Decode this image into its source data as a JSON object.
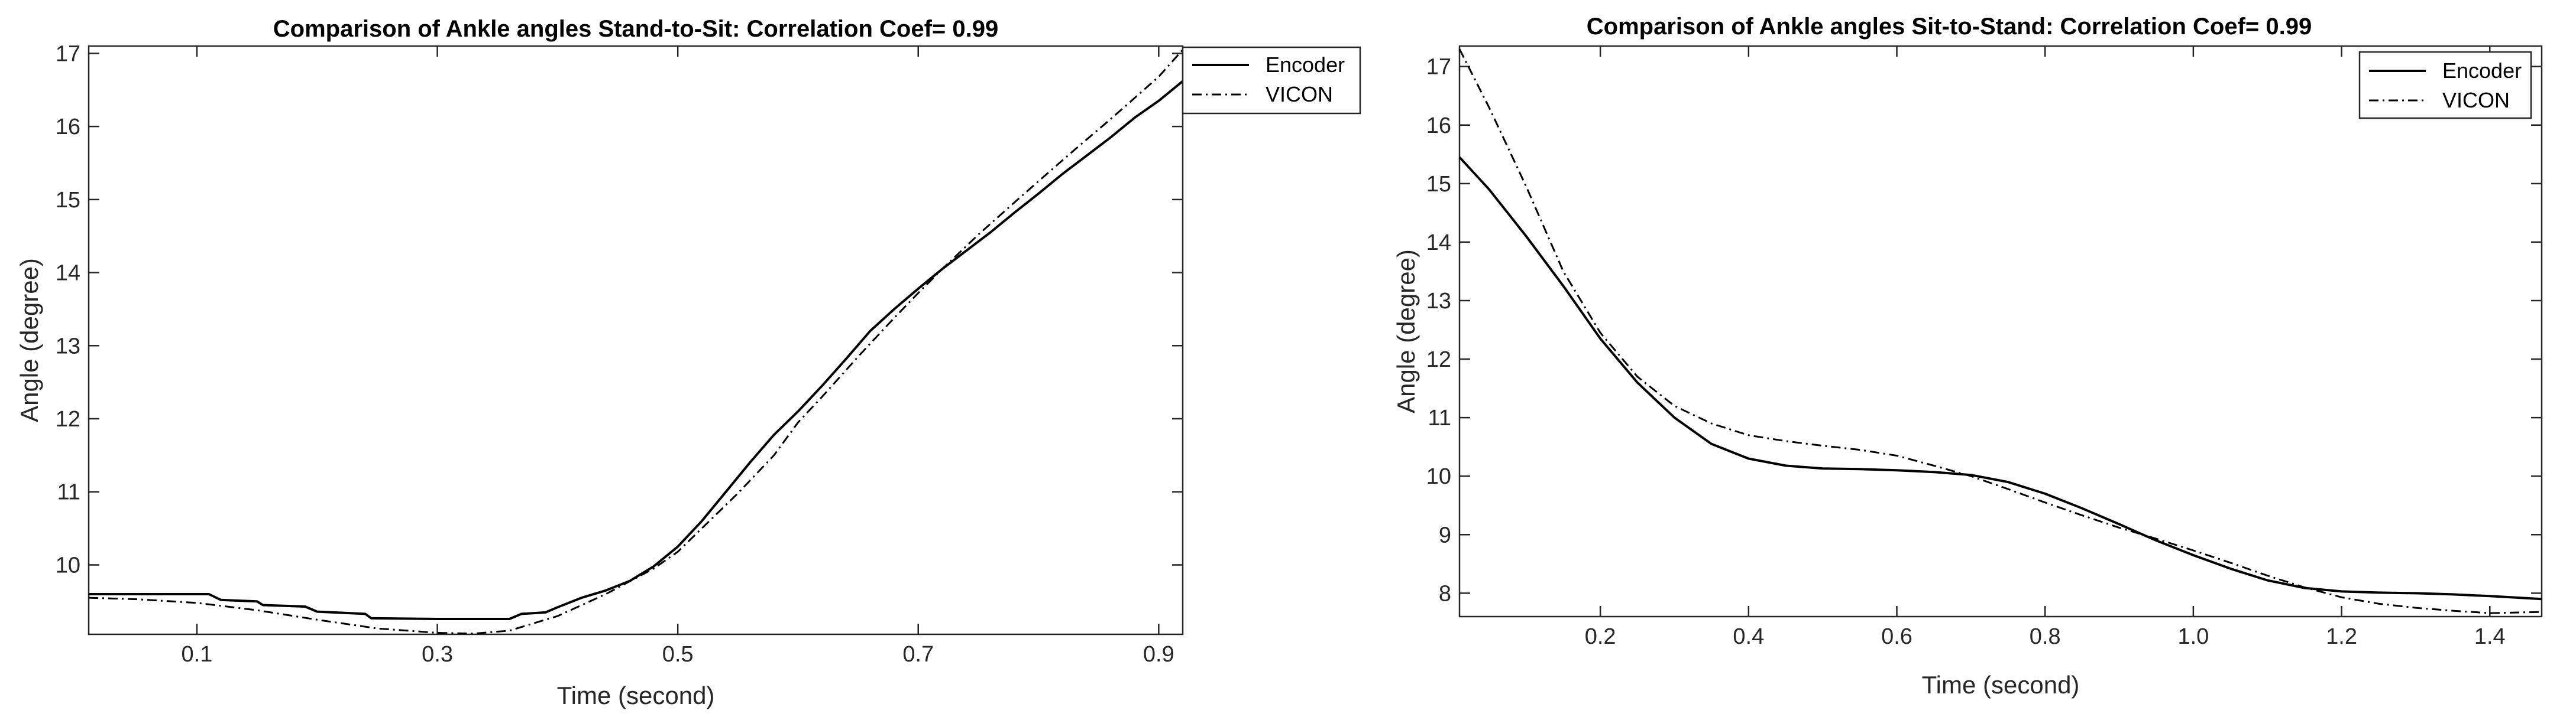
{
  "chart_data": [
    {
      "type": "line",
      "title": "Comparison of Ankle angles Stand-to-Sit: Correlation Coef= 0.99",
      "xlabel": "Time (second)",
      "ylabel": "Angle (degree)",
      "xlim": [
        0.01,
        0.92
      ],
      "ylim": [
        9.05,
        17.1
      ],
      "xticks": [
        0.1,
        0.3,
        0.5,
        0.7,
        0.9
      ],
      "xtick_labels": [
        "0.1",
        "0.3",
        "0.5",
        "0.7",
        "0.9"
      ],
      "yticks": [
        10,
        11,
        12,
        13,
        14,
        15,
        16,
        17
      ],
      "ytick_labels": [
        "10",
        "11",
        "12",
        "13",
        "14",
        "15",
        "16",
        "17"
      ],
      "legend_position": "outside-top-right",
      "series": [
        {
          "name": "Encoder",
          "style": "solid",
          "x": [
            0.01,
            0.06,
            0.11,
            0.12,
            0.15,
            0.155,
            0.19,
            0.2,
            0.24,
            0.245,
            0.3,
            0.36,
            0.37,
            0.39,
            0.4,
            0.42,
            0.44,
            0.46,
            0.48,
            0.5,
            0.52,
            0.54,
            0.56,
            0.58,
            0.6,
            0.62,
            0.64,
            0.66,
            0.68,
            0.7,
            0.72,
            0.74,
            0.76,
            0.78,
            0.8,
            0.82,
            0.84,
            0.86,
            0.88,
            0.9,
            0.92
          ],
          "y": [
            9.6,
            9.6,
            9.6,
            9.52,
            9.5,
            9.45,
            9.43,
            9.36,
            9.33,
            9.27,
            9.26,
            9.26,
            9.33,
            9.35,
            9.42,
            9.55,
            9.65,
            9.78,
            9.98,
            10.25,
            10.6,
            11.0,
            11.4,
            11.78,
            12.1,
            12.45,
            12.82,
            13.2,
            13.5,
            13.78,
            14.05,
            14.3,
            14.55,
            14.82,
            15.08,
            15.35,
            15.6,
            15.85,
            16.12,
            16.35,
            16.62
          ]
        },
        {
          "name": "VICON",
          "style": "dashdot",
          "x": [
            0.01,
            0.05,
            0.1,
            0.15,
            0.2,
            0.25,
            0.3,
            0.33,
            0.36,
            0.4,
            0.44,
            0.48,
            0.5,
            0.52,
            0.55,
            0.58,
            0.6,
            0.62,
            0.65,
            0.68,
            0.7,
            0.72,
            0.75,
            0.78,
            0.8,
            0.83,
            0.86,
            0.9,
            0.92
          ],
          "y": [
            9.55,
            9.53,
            9.48,
            9.38,
            9.25,
            9.13,
            9.07,
            9.06,
            9.1,
            9.3,
            9.6,
            9.95,
            10.18,
            10.5,
            10.98,
            11.5,
            11.95,
            12.3,
            12.85,
            13.38,
            13.72,
            14.05,
            14.52,
            14.96,
            15.25,
            15.68,
            16.1,
            16.68,
            17.05
          ]
        }
      ]
    },
    {
      "type": "line",
      "title": "Comparison of Ankle angles Sit-to-Stand: Correlation Coef= 0.99",
      "xlabel": "Time (second)",
      "ylabel": "Angle (degree)",
      "xlim": [
        0.01,
        1.47
      ],
      "ylim": [
        7.6,
        17.35
      ],
      "xticks": [
        0.2,
        0.4,
        0.6,
        0.8,
        1.0,
        1.2,
        1.4
      ],
      "xtick_labels": [
        "0.2",
        "0.4",
        "0.6",
        "0.8",
        "1.0",
        "1.2",
        "1.4"
      ],
      "yticks": [
        8,
        9,
        10,
        11,
        12,
        13,
        14,
        15,
        16,
        17
      ],
      "ytick_labels": [
        "8",
        "9",
        "10",
        "11",
        "12",
        "13",
        "14",
        "15",
        "16",
        "17"
      ],
      "legend_position": "top-right",
      "series": [
        {
          "name": "Encoder",
          "style": "solid",
          "x": [
            0.01,
            0.05,
            0.1,
            0.15,
            0.2,
            0.25,
            0.3,
            0.35,
            0.4,
            0.45,
            0.5,
            0.55,
            0.6,
            0.65,
            0.7,
            0.75,
            0.8,
            0.85,
            0.9,
            0.95,
            1.0,
            1.05,
            1.1,
            1.15,
            1.2,
            1.25,
            1.3,
            1.35,
            1.4,
            1.47
          ],
          "y": [
            15.45,
            14.9,
            14.1,
            13.25,
            12.35,
            11.6,
            11.0,
            10.55,
            10.3,
            10.18,
            10.13,
            10.12,
            10.1,
            10.07,
            10.02,
            9.9,
            9.7,
            9.45,
            9.18,
            8.9,
            8.65,
            8.42,
            8.22,
            8.09,
            8.03,
            8.01,
            8.0,
            7.98,
            7.95,
            7.9
          ]
        },
        {
          "name": "VICON",
          "style": "dashdot",
          "x": [
            0.01,
            0.05,
            0.1,
            0.15,
            0.2,
            0.25,
            0.3,
            0.35,
            0.4,
            0.45,
            0.5,
            0.55,
            0.6,
            0.65,
            0.7,
            0.75,
            0.8,
            0.85,
            0.9,
            0.95,
            1.0,
            1.05,
            1.1,
            1.15,
            1.2,
            1.25,
            1.3,
            1.35,
            1.4,
            1.47
          ],
          "y": [
            17.3,
            16.3,
            14.95,
            13.5,
            12.45,
            11.7,
            11.2,
            10.9,
            10.7,
            10.6,
            10.52,
            10.45,
            10.35,
            10.18,
            10.0,
            9.78,
            9.55,
            9.33,
            9.12,
            8.93,
            8.73,
            8.52,
            8.3,
            8.1,
            7.93,
            7.82,
            7.75,
            7.7,
            7.66,
            7.68
          ]
        }
      ]
    }
  ]
}
